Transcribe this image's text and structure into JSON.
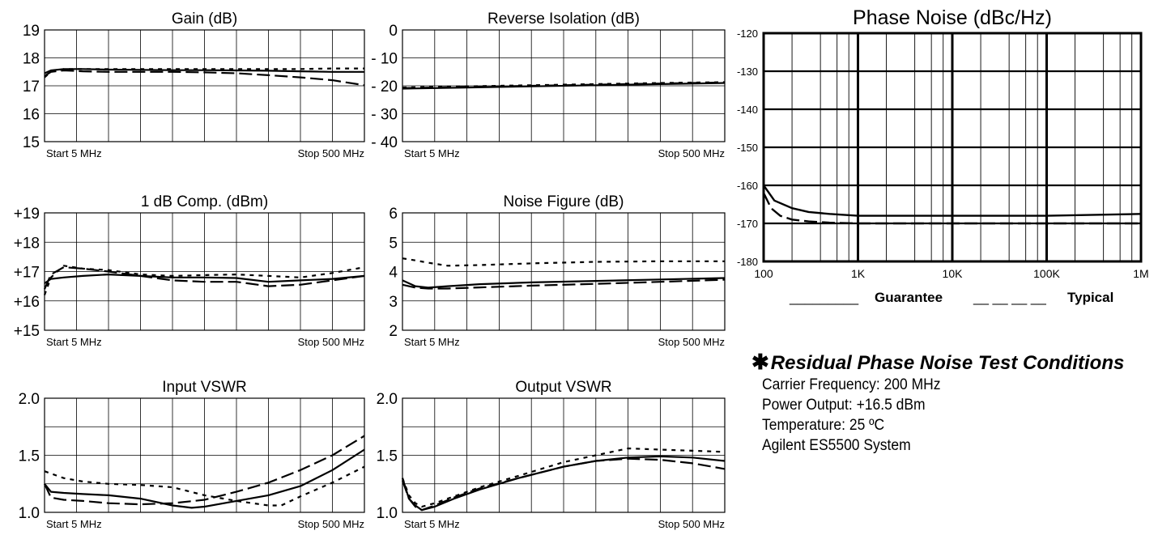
{
  "chart_data": [
    {
      "id": "gain",
      "type": "line",
      "title": "Gain (dB)",
      "ylim": [
        15,
        19
      ],
      "yticks": [
        "15",
        "16",
        "17",
        "18",
        "19"
      ],
      "x_start_label": "Start  5  MHz",
      "x_stop_label": "Stop  500 MHz",
      "xlim": [
        0,
        500
      ],
      "vlines": 10,
      "hlines": 4,
      "series": [
        {
          "style": "solid",
          "x": [
            0,
            10,
            30,
            60,
            100,
            150,
            200,
            250,
            300,
            350,
            400,
            450,
            500
          ],
          "y": [
            17.45,
            17.55,
            17.6,
            17.6,
            17.58,
            17.57,
            17.56,
            17.56,
            17.55,
            17.54,
            17.52,
            17.5,
            17.5
          ]
        },
        {
          "style": "dashed",
          "x": [
            0,
            10,
            30,
            60,
            100,
            150,
            200,
            250,
            300,
            350,
            400,
            450,
            500
          ],
          "y": [
            17.35,
            17.5,
            17.55,
            17.52,
            17.5,
            17.5,
            17.5,
            17.48,
            17.45,
            17.38,
            17.3,
            17.2,
            17.02
          ]
        },
        {
          "style": "dotted",
          "x": [
            0,
            10,
            30,
            60,
            100,
            150,
            200,
            250,
            300,
            350,
            400,
            450,
            500
          ],
          "y": [
            17.3,
            17.5,
            17.6,
            17.6,
            17.6,
            17.6,
            17.6,
            17.6,
            17.6,
            17.6,
            17.6,
            17.62,
            17.62
          ]
        }
      ]
    },
    {
      "id": "reverse-isolation",
      "type": "line",
      "title": "Reverse Isolation (dB)",
      "ylim": [
        -40,
        0
      ],
      "yticks": [
        "- 40",
        "- 30",
        "- 20",
        "- 10",
        "0"
      ],
      "x_start_label": "Start  5  MHz",
      "x_stop_label": "Stop  500 MHz",
      "xlim": [
        0,
        500
      ],
      "vlines": 10,
      "hlines": 4,
      "series": [
        {
          "style": "solid",
          "x": [
            0,
            100,
            200,
            300,
            400,
            500
          ],
          "y": [
            -21,
            -20.6,
            -20.2,
            -19.8,
            -19.4,
            -19
          ]
        },
        {
          "style": "dashed",
          "x": [
            0,
            100,
            200,
            300,
            400,
            500
          ],
          "y": [
            -20.8,
            -20.4,
            -20,
            -19.6,
            -19.2,
            -18.8
          ]
        },
        {
          "style": "dotted",
          "x": [
            0,
            100,
            200,
            300,
            400,
            500
          ],
          "y": [
            -20.6,
            -20.2,
            -19.8,
            -19.4,
            -19,
            -18.7
          ]
        }
      ]
    },
    {
      "id": "one-db-comp",
      "type": "line",
      "title": "1 dB Comp. (dBm)",
      "ylim": [
        15,
        19
      ],
      "yticks": [
        "+15",
        "+16",
        "+17",
        "+18",
        "+19"
      ],
      "x_start_label": "Start  5  MHz",
      "x_stop_label": "Stop  500 MHz",
      "xlim": [
        0,
        500
      ],
      "vlines": 10,
      "hlines": 4,
      "series": [
        {
          "style": "solid",
          "x": [
            0,
            10,
            30,
            60,
            100,
            150,
            200,
            250,
            300,
            350,
            400,
            450,
            500
          ],
          "y": [
            16.6,
            16.75,
            16.8,
            16.85,
            16.9,
            16.85,
            16.8,
            16.8,
            16.78,
            16.65,
            16.7,
            16.75,
            16.85
          ]
        },
        {
          "style": "dashed",
          "x": [
            0,
            10,
            30,
            60,
            100,
            150,
            200,
            250,
            300,
            350,
            400,
            450,
            500
          ],
          "y": [
            16.4,
            16.9,
            17.15,
            17.1,
            17.0,
            16.85,
            16.7,
            16.65,
            16.65,
            16.5,
            16.55,
            16.7,
            16.85
          ]
        },
        {
          "style": "dotted",
          "x": [
            0,
            10,
            30,
            60,
            100,
            150,
            200,
            250,
            300,
            350,
            400,
            450,
            500
          ],
          "y": [
            16.2,
            16.8,
            17.2,
            17.1,
            17.05,
            16.9,
            16.85,
            16.88,
            16.9,
            16.85,
            16.8,
            16.95,
            17.15
          ]
        }
      ]
    },
    {
      "id": "noise-figure",
      "type": "line",
      "title": "Noise Figure (dB)",
      "ylim": [
        2,
        6
      ],
      "yticks": [
        "2",
        "3",
        "4",
        "5",
        "6"
      ],
      "x_start_label": "Start  5  MHz",
      "x_stop_label": "Stop  500 MHz",
      "xlim": [
        0,
        500
      ],
      "vlines": 10,
      "hlines": 4,
      "series": [
        {
          "style": "solid",
          "x": [
            0,
            20,
            40,
            70,
            120,
            200,
            300,
            400,
            500
          ],
          "y": [
            3.7,
            3.5,
            3.45,
            3.5,
            3.57,
            3.63,
            3.68,
            3.73,
            3.78
          ]
        },
        {
          "style": "dashed",
          "x": [
            0,
            20,
            40,
            70,
            120,
            200,
            300,
            400,
            500
          ],
          "y": [
            3.55,
            3.45,
            3.42,
            3.42,
            3.46,
            3.52,
            3.58,
            3.65,
            3.72
          ]
        },
        {
          "style": "dotted",
          "x": [
            0,
            20,
            40,
            70,
            120,
            200,
            300,
            400,
            500
          ],
          "y": [
            4.45,
            4.38,
            4.3,
            4.2,
            4.22,
            4.28,
            4.33,
            4.35,
            4.35
          ]
        }
      ]
    },
    {
      "id": "input-vswr",
      "type": "line",
      "title": "Input VSWR",
      "ylim": [
        1.0,
        2.0
      ],
      "yticks": [
        "1.0",
        "",
        "1.5",
        "",
        "2.0"
      ],
      "x_start_label": "Start  5  MHz",
      "x_stop_label": "Stop  500 MHz",
      "xlim": [
        0,
        500
      ],
      "vlines": 10,
      "hlines": 4,
      "series": [
        {
          "style": "solid",
          "x": [
            0,
            10,
            30,
            60,
            100,
            150,
            200,
            230,
            250,
            300,
            350,
            400,
            450,
            500
          ],
          "y": [
            1.25,
            1.18,
            1.17,
            1.16,
            1.15,
            1.12,
            1.06,
            1.04,
            1.05,
            1.1,
            1.15,
            1.23,
            1.37,
            1.55
          ]
        },
        {
          "style": "dashed",
          "x": [
            0,
            10,
            30,
            60,
            100,
            150,
            200,
            250,
            300,
            350,
            400,
            450,
            500
          ],
          "y": [
            1.25,
            1.13,
            1.11,
            1.1,
            1.08,
            1.07,
            1.08,
            1.11,
            1.18,
            1.26,
            1.37,
            1.5,
            1.67
          ]
        },
        {
          "style": "dotted",
          "x": [
            0,
            10,
            30,
            60,
            100,
            150,
            200,
            250,
            300,
            350,
            370,
            400,
            450,
            500
          ],
          "y": [
            1.36,
            1.34,
            1.3,
            1.27,
            1.25,
            1.24,
            1.22,
            1.15,
            1.1,
            1.06,
            1.06,
            1.14,
            1.26,
            1.4
          ]
        }
      ]
    },
    {
      "id": "output-vswr",
      "type": "line",
      "title": "Output VSWR",
      "ylim": [
        1.0,
        2.0
      ],
      "yticks": [
        "1.0",
        "",
        "1.5",
        "",
        "2.0"
      ],
      "x_start_label": "Start  5  MHz",
      "x_stop_label": "Stop  500 MHz",
      "xlim": [
        0,
        500
      ],
      "vlines": 10,
      "hlines": 4,
      "series": [
        {
          "style": "solid",
          "x": [
            0,
            10,
            20,
            30,
            50,
            80,
            120,
            180,
            250,
            300,
            350,
            400,
            450,
            500
          ],
          "y": [
            1.3,
            1.12,
            1.06,
            1.02,
            1.05,
            1.12,
            1.2,
            1.3,
            1.4,
            1.45,
            1.48,
            1.49,
            1.48,
            1.45
          ]
        },
        {
          "style": "dashed",
          "x": [
            0,
            10,
            20,
            30,
            50,
            80,
            120,
            180,
            250,
            300,
            350,
            400,
            450,
            500
          ],
          "y": [
            1.28,
            1.12,
            1.05,
            1.02,
            1.06,
            1.13,
            1.21,
            1.3,
            1.4,
            1.45,
            1.47,
            1.46,
            1.43,
            1.38
          ]
        },
        {
          "style": "dotted",
          "x": [
            0,
            10,
            20,
            30,
            50,
            80,
            120,
            180,
            250,
            300,
            350,
            400,
            450,
            500
          ],
          "y": [
            1.3,
            1.15,
            1.08,
            1.05,
            1.08,
            1.14,
            1.22,
            1.32,
            1.44,
            1.5,
            1.56,
            1.55,
            1.54,
            1.53
          ]
        }
      ]
    },
    {
      "id": "phase-noise",
      "type": "line",
      "title": "Phase Noise (dBc/Hz)",
      "x_scale": "log",
      "xlim": [
        100,
        1000000
      ],
      "ylim": [
        -180,
        -120
      ],
      "x_ticks": [
        100,
        1000,
        10000,
        100000,
        1000000
      ],
      "x_tick_labels": [
        "100",
        "1K",
        "10K",
        "100K",
        "1M"
      ],
      "yticks": [
        "-180",
        "-170",
        "-160",
        "-150",
        "-140",
        "-130",
        "-120"
      ],
      "legend": {
        "guarantee_line": "_________",
        "guarantee": "Guarantee",
        "typical_line": "__ __ __ __",
        "typical": "Typical"
      },
      "series": [
        {
          "name": "Guarantee",
          "style": "solid",
          "x": [
            100,
            130,
            200,
            300,
            500,
            1000,
            10000,
            100000,
            1000000
          ],
          "y": [
            -160,
            -164,
            -166,
            -167,
            -167.5,
            -168,
            -168,
            -168,
            -167.5
          ]
        },
        {
          "name": "Typical",
          "style": "dashed",
          "x": [
            100,
            120,
            150,
            200,
            300,
            500,
            1000,
            10000,
            100000,
            1000000
          ],
          "y": [
            -162,
            -166,
            -168,
            -169,
            -169.5,
            -169.8,
            -170,
            -170,
            -170,
            -170
          ]
        }
      ]
    }
  ],
  "notes": {
    "star": "✱",
    "title": "Residual Phase Noise Test Conditions",
    "lines": [
      "Carrier Frequency: 200 MHz",
      "Power Output: +16.5 dBm",
      "Temperature: 25 ºC",
      "Agilent ES5500 System"
    ]
  }
}
